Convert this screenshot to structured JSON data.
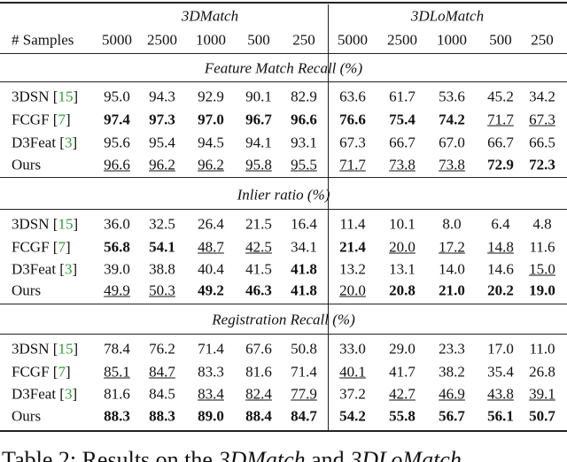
{
  "header": {
    "groups": [
      "3DMatch",
      "3DLoMatch"
    ],
    "samples_label": "# Samples",
    "samples": [
      "5000",
      "2500",
      "1000",
      "500",
      "250",
      "5000",
      "2500",
      "1000",
      "500",
      "250"
    ]
  },
  "sections": [
    {
      "title": "Feature Match Recall (%)",
      "rows": [
        {
          "method": "3DSN",
          "cite": {
            "open": "[",
            "ref": "15",
            "close": "]"
          },
          "values": [
            "95.0",
            "94.3",
            "92.9",
            "90.1",
            "82.9",
            "63.6",
            "61.7",
            "53.6",
            "45.2",
            "34.2"
          ],
          "bold": [],
          "underline": []
        },
        {
          "method": "FCGF",
          "cite": {
            "open": "[",
            "ref": "7",
            "close": "]"
          },
          "values": [
            "97.4",
            "97.3",
            "97.0",
            "96.7",
            "96.6",
            "76.6",
            "75.4",
            "74.2",
            "71.7",
            "67.3"
          ],
          "bold": [
            0,
            1,
            2,
            3,
            4,
            5,
            6,
            7
          ],
          "underline": [
            8,
            9
          ]
        },
        {
          "method": "D3Feat",
          "cite": {
            "open": "[",
            "ref": "3",
            "close": "]"
          },
          "values": [
            "95.6",
            "95.4",
            "94.5",
            "94.1",
            "93.1",
            "67.3",
            "66.7",
            "67.0",
            "66.7",
            "66.5"
          ],
          "bold": [],
          "underline": []
        },
        {
          "method": "Ours",
          "values": [
            "96.6",
            "96.2",
            "96.2",
            "95.8",
            "95.5",
            "71.7",
            "73.8",
            "73.8",
            "72.9",
            "72.3"
          ],
          "bold": [
            8,
            9
          ],
          "underline": [
            0,
            1,
            2,
            3,
            4,
            5,
            6,
            7
          ]
        }
      ]
    },
    {
      "title": "Inlier ratio (%)",
      "rows": [
        {
          "method": "3DSN",
          "cite": {
            "open": "[",
            "ref": "15",
            "close": "]"
          },
          "values": [
            "36.0",
            "32.5",
            "26.4",
            "21.5",
            "16.4",
            "11.4",
            "10.1",
            "8.0",
            "6.4",
            "4.8"
          ],
          "bold": [],
          "underline": []
        },
        {
          "method": "FCGF",
          "cite": {
            "open": "[",
            "ref": "7",
            "close": "]"
          },
          "values": [
            "56.8",
            "54.1",
            "48.7",
            "42.5",
            "34.1",
            "21.4",
            "20.0",
            "17.2",
            "14.8",
            "11.6"
          ],
          "bold": [
            0,
            1,
            5
          ],
          "underline": [
            2,
            3,
            6,
            7,
            8
          ]
        },
        {
          "method": "D3Feat",
          "cite": {
            "open": "[",
            "ref": "3",
            "close": "]"
          },
          "values": [
            "39.0",
            "38.8",
            "40.4",
            "41.5",
            "41.8",
            "13.2",
            "13.1",
            "14.0",
            "14.6",
            "15.0"
          ],
          "bold": [
            4
          ],
          "underline": [
            9
          ]
        },
        {
          "method": "Ours",
          "values": [
            "49.9",
            "50.3",
            "49.2",
            "46.3",
            "41.8",
            "20.0",
            "20.8",
            "21.0",
            "20.2",
            "19.0"
          ],
          "bold": [
            2,
            3,
            4,
            6,
            7,
            8,
            9
          ],
          "underline": [
            0,
            1,
            5
          ]
        }
      ]
    },
    {
      "title": "Registration Recall (%)",
      "rows": [
        {
          "method": "3DSN",
          "cite": {
            "open": "[",
            "ref": "15",
            "close": "]"
          },
          "values": [
            "78.4",
            "76.2",
            "71.4",
            "67.6",
            "50.8",
            "33.0",
            "29.0",
            "23.3",
            "17.0",
            "11.0"
          ],
          "bold": [],
          "underline": []
        },
        {
          "method": "FCGF",
          "cite": {
            "open": "[",
            "ref": "7",
            "close": "]"
          },
          "values": [
            "85.1",
            "84.7",
            "83.3",
            "81.6",
            "71.4",
            "40.1",
            "41.7",
            "38.2",
            "35.4",
            "26.8"
          ],
          "bold": [],
          "underline": [
            0,
            1,
            5
          ]
        },
        {
          "method": "D3Feat",
          "cite": {
            "open": "[",
            "ref": "3",
            "close": "]"
          },
          "values": [
            "81.6",
            "84.5",
            "83.4",
            "82.4",
            "77.9",
            "37.2",
            "42.7",
            "46.9",
            "43.8",
            "39.1"
          ],
          "bold": [],
          "underline": [
            2,
            3,
            4,
            6,
            7,
            8,
            9
          ]
        },
        {
          "method": "Ours",
          "values": [
            "88.3",
            "88.3",
            "89.0",
            "88.4",
            "84.7",
            "54.2",
            "55.8",
            "56.7",
            "56.1",
            "50.7"
          ],
          "bold": [
            0,
            1,
            2,
            3,
            4,
            5,
            6,
            7,
            8,
            9
          ],
          "underline": []
        }
      ]
    }
  ],
  "caption": [
    {
      "text": "Table 2: Results on the "
    },
    {
      "text": "3DMatch",
      "italic": true
    },
    {
      "text": " and "
    },
    {
      "text": "3DLoMatch",
      "italic": true
    }
  ]
}
